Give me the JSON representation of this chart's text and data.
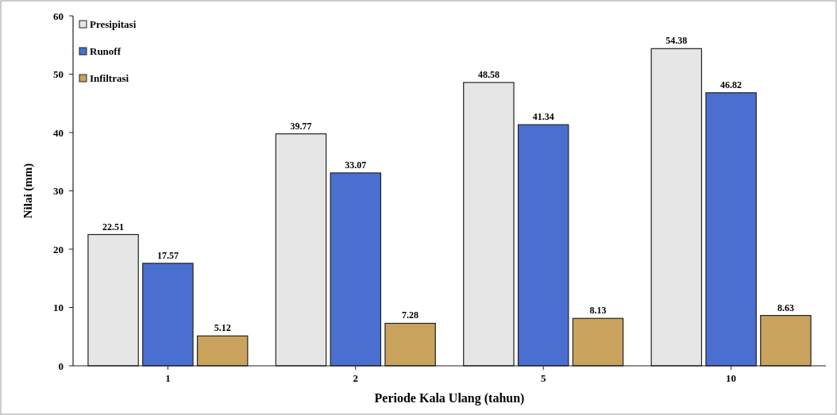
{
  "chart_data": {
    "type": "bar",
    "xlabel": "Periode Kala Ulang  (tahun)",
    "ylabel": "Nilai (mm)",
    "categories": [
      "1",
      "2",
      "5",
      "10"
    ],
    "series": [
      {
        "name": "Presipitasi",
        "color": "#e6e6e6",
        "values": [
          22.51,
          39.77,
          48.58,
          54.38
        ]
      },
      {
        "name": "Runoff",
        "color": "#4a6fd0",
        "values": [
          17.57,
          33.07,
          41.34,
          46.82
        ]
      },
      {
        "name": "Infiltrasi",
        "color": "#c9a35e",
        "values": [
          5.12,
          7.28,
          8.13,
          8.63
        ]
      }
    ],
    "ylim": [
      0,
      60
    ],
    "yticks": [
      0,
      10,
      20,
      30,
      40,
      50,
      60
    ],
    "data_labels": true,
    "legend": "top left",
    "grid": false
  }
}
